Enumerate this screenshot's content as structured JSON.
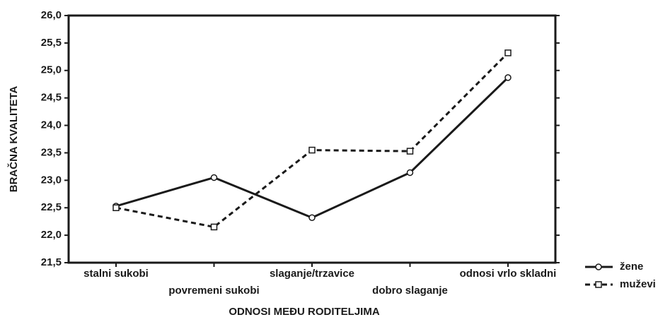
{
  "chart_data": {
    "type": "line",
    "x_label": "ODNOSI MEĐU RODITELJIMA",
    "y_label": "BRAČNA KVALITETA",
    "categories": [
      "stalni sukobi",
      "povremeni sukobi",
      "slaganje/trzavice",
      "dobro slaganje",
      "odnosi vrlo skladni"
    ],
    "series": [
      {
        "name": "žene",
        "color": "#1a1a1a",
        "line_style": "solid",
        "marker": "circle",
        "values": [
          22.53,
          23.05,
          22.32,
          23.14,
          24.87
        ]
      },
      {
        "name": "muževi",
        "color": "#1a1a1a",
        "line_style": "dashed",
        "marker": "square",
        "values": [
          22.5,
          22.15,
          23.55,
          23.53,
          25.32
        ]
      }
    ],
    "ylim": [
      21.5,
      26.0
    ],
    "yticks": [
      {
        "value": 21.5,
        "label": "21,5"
      },
      {
        "value": 22.0,
        "label": "22,0"
      },
      {
        "value": 22.5,
        "label": "22,5"
      },
      {
        "value": 23.0,
        "label": "23,0"
      },
      {
        "value": 23.5,
        "label": "23,5"
      },
      {
        "value": 24.0,
        "label": "24,0"
      },
      {
        "value": 24.5,
        "label": "24,5"
      },
      {
        "value": 25.0,
        "label": "25,0"
      },
      {
        "value": 25.5,
        "label": "25,5"
      },
      {
        "value": 26.0,
        "label": "26,0"
      }
    ],
    "grid": false,
    "legend_position": "bottom-right"
  }
}
